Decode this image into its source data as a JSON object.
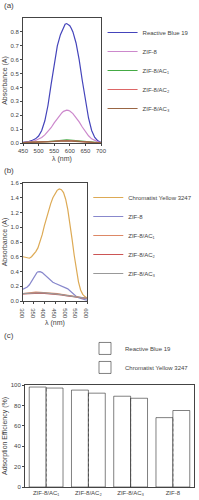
{
  "chart_data": [
    {
      "type": "line",
      "title": "(a)",
      "xlabel": "λ (nm)",
      "ylabel": "Absorbance (A)",
      "xlim": [
        450,
        700
      ],
      "ylim": [
        0.0,
        0.9
      ],
      "xticks": [
        450,
        500,
        550,
        600,
        650,
        700
      ],
      "yticks": [
        {
          "value": 0,
          "label": "0.0"
        },
        0.1,
        0.2,
        0.3,
        0.4,
        0.5,
        0.6,
        0.7,
        0.8
      ],
      "grid": false,
      "legend": "right",
      "series": [
        {
          "name": "Reactive Blue 19",
          "color": "#4444bb",
          "x": [
            450,
            460,
            470,
            480,
            490,
            500,
            510,
            520,
            530,
            540,
            550,
            560,
            570,
            575,
            580,
            585,
            590,
            595,
            600,
            605,
            610,
            620,
            630,
            640,
            650,
            660,
            670,
            680,
            690,
            700
          ],
          "values": [
            0.005,
            0.008,
            0.012,
            0.02,
            0.03,
            0.05,
            0.09,
            0.16,
            0.27,
            0.42,
            0.57,
            0.7,
            0.78,
            0.81,
            0.84,
            0.855,
            0.86,
            0.855,
            0.845,
            0.825,
            0.8,
            0.72,
            0.6,
            0.45,
            0.3,
            0.18,
            0.09,
            0.04,
            0.015,
            0.005
          ]
        },
        {
          "name": "ZIF-8",
          "color": "#cc88cc",
          "x": [
            450,
            460,
            470,
            480,
            490,
            500,
            510,
            520,
            530,
            540,
            550,
            560,
            570,
            575,
            580,
            585,
            590,
            595,
            600,
            610,
            620,
            630,
            640,
            650,
            660,
            670,
            680,
            690,
            700
          ],
          "values": [
            0.003,
            0.005,
            0.008,
            0.012,
            0.018,
            0.027,
            0.04,
            0.058,
            0.082,
            0.11,
            0.145,
            0.178,
            0.205,
            0.218,
            0.228,
            0.234,
            0.237,
            0.235,
            0.23,
            0.212,
            0.185,
            0.152,
            0.115,
            0.08,
            0.052,
            0.03,
            0.016,
            0.008,
            0.003
          ]
        },
        {
          "name": "ZIF-8/AC₁",
          "color": "#44aa44",
          "x": [
            450,
            470,
            490,
            510,
            530,
            550,
            570,
            590,
            610,
            630,
            650,
            670,
            690,
            700
          ],
          "values": [
            0.003,
            0.004,
            0.005,
            0.007,
            0.01,
            0.014,
            0.019,
            0.022,
            0.019,
            0.014,
            0.008,
            0.004,
            0.002,
            0.001
          ]
        },
        {
          "name": "ZIF-8/AC₂",
          "color": "#dd6666",
          "x": [
            450,
            470,
            490,
            510,
            530,
            550,
            570,
            590,
            610,
            630,
            650,
            670,
            690,
            700
          ],
          "values": [
            0.003,
            0.004,
            0.005,
            0.007,
            0.009,
            0.012,
            0.016,
            0.018,
            0.016,
            0.012,
            0.007,
            0.003,
            0.001,
            0.001
          ]
        },
        {
          "name": "ZIF-8/AC₃",
          "color": "#996644",
          "x": [
            450,
            470,
            490,
            510,
            530,
            550,
            570,
            590,
            610,
            630,
            650,
            670,
            690,
            700
          ],
          "values": [
            0.002,
            0.003,
            0.004,
            0.005,
            0.007,
            0.01,
            0.013,
            0.015,
            0.013,
            0.009,
            0.005,
            0.003,
            0.001,
            0.001
          ]
        }
      ]
    },
    {
      "type": "line",
      "title": "(b)",
      "xlabel": "λ (nm)",
      "ylabel": "Absorbance (A)",
      "xlim": [
        300,
        600
      ],
      "ylim": [
        0.0,
        1.6
      ],
      "xticks": [
        300,
        350,
        400,
        450,
        500,
        550,
        600
      ],
      "yticks": [
        {
          "value": 0,
          "label": "0.0"
        },
        0.2,
        0.4,
        0.6,
        0.8,
        {
          "value": 1,
          "label": "1.0"
        },
        1.2,
        1.4,
        1.6
      ],
      "grid": false,
      "legend": "right",
      "series": [
        {
          "name": "Chromatist Yellow 3247",
          "color": "#ddaa55",
          "x": [
            300,
            310,
            320,
            330,
            340,
            350,
            360,
            370,
            380,
            390,
            400,
            410,
            420,
            430,
            440,
            450,
            460,
            470,
            480,
            490,
            500,
            510,
            520,
            530,
            540,
            550,
            560,
            570,
            580,
            590,
            600
          ],
          "values": [
            0.6,
            0.59,
            0.58,
            0.58,
            0.6,
            0.63,
            0.67,
            0.72,
            0.8,
            0.9,
            1.02,
            1.13,
            1.23,
            1.32,
            1.4,
            1.46,
            1.5,
            1.52,
            1.51,
            1.47,
            1.38,
            1.24,
            1.06,
            0.84,
            0.62,
            0.42,
            0.26,
            0.15,
            0.09,
            0.06,
            0.04
          ]
        },
        {
          "name": "ZIF-8",
          "color": "#8888cc",
          "x": [
            300,
            310,
            320,
            330,
            340,
            350,
            360,
            365,
            370,
            375,
            380,
            390,
            400,
            410,
            420,
            430,
            440,
            450,
            460,
            470,
            480,
            490,
            500,
            510,
            520,
            530,
            540,
            550,
            560,
            570,
            580,
            590,
            600
          ],
          "values": [
            0.16,
            0.17,
            0.19,
            0.22,
            0.27,
            0.33,
            0.37,
            0.385,
            0.395,
            0.4,
            0.398,
            0.385,
            0.36,
            0.33,
            0.3,
            0.275,
            0.255,
            0.24,
            0.228,
            0.218,
            0.21,
            0.2,
            0.185,
            0.165,
            0.14,
            0.112,
            0.085,
            0.062,
            0.045,
            0.033,
            0.025,
            0.018,
            0.013
          ]
        },
        {
          "name": "ZIF-8/AC₁",
          "color": "#dd8866",
          "x": [
            300,
            320,
            340,
            360,
            380,
            400,
            420,
            440,
            460,
            480,
            500,
            520,
            540,
            560,
            580,
            600
          ],
          "values": [
            0.1,
            0.11,
            0.115,
            0.12,
            0.118,
            0.115,
            0.11,
            0.105,
            0.1,
            0.09,
            0.08,
            0.07,
            0.06,
            0.05,
            0.04,
            0.035
          ]
        },
        {
          "name": "ZIF-8/AC₂",
          "color": "#cc5555",
          "x": [
            300,
            320,
            340,
            360,
            380,
            400,
            420,
            440,
            460,
            480,
            500,
            520,
            540,
            560,
            580,
            600
          ],
          "values": [
            0.095,
            0.1,
            0.105,
            0.108,
            0.107,
            0.104,
            0.1,
            0.096,
            0.09,
            0.082,
            0.073,
            0.064,
            0.055,
            0.047,
            0.04,
            0.034
          ]
        },
        {
          "name": "ZIF-8/AC₃",
          "color": "#999999",
          "x": [
            300,
            320,
            340,
            360,
            380,
            400,
            420,
            440,
            460,
            480,
            500,
            520,
            540,
            560,
            580,
            600
          ],
          "values": [
            0.1,
            0.105,
            0.11,
            0.113,
            0.112,
            0.109,
            0.105,
            0.1,
            0.094,
            0.086,
            0.077,
            0.067,
            0.058,
            0.049,
            0.042,
            0.036
          ]
        }
      ]
    },
    {
      "type": "bar",
      "title": "(c)",
      "ylabel": "Adsorption Efficiency (%)",
      "categories": [
        "ZIF-8/AC₁",
        "ZIF-8/AC₂",
        "ZIF-8/AC₃",
        "ZIF-8"
      ],
      "ylim": [
        0,
        100
      ],
      "yticks": [
        0,
        20,
        40,
        60,
        80,
        100
      ],
      "grid": false,
      "legend": "upper right",
      "series": [
        {
          "name": "Reactive Blue 19",
          "color": "#22ccbb",
          "values": [
            98,
            95,
            89,
            68
          ]
        },
        {
          "name": "Chromatist Yellow 3247",
          "color": "#cccc44",
          "values": [
            97,
            92,
            87,
            75
          ]
        }
      ]
    }
  ]
}
